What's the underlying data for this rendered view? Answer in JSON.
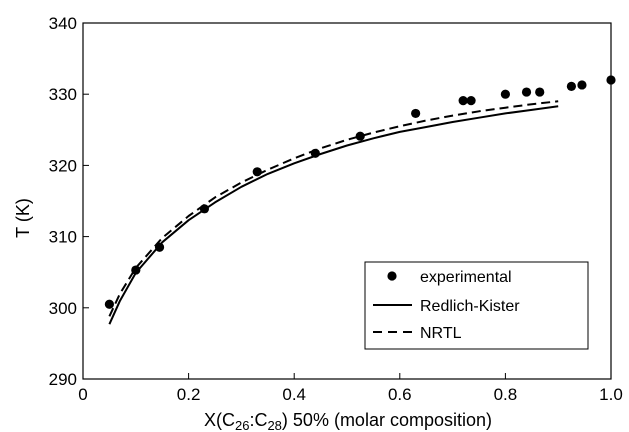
{
  "chart_data": {
    "type": "line",
    "xlabel": {
      "prefix": "X(C",
      "sub1": "26",
      "mid": ":C",
      "sub2": "28",
      "suffix": ") 50% (molar composition)"
    },
    "ylabel": "T (K)",
    "xlim": [
      0,
      1.0
    ],
    "ylim": [
      290,
      340
    ],
    "x_ticks": [
      0,
      0.2,
      0.4,
      0.6,
      0.8,
      1.0
    ],
    "x_tick_labels": [
      "0",
      "0.2",
      "0.4",
      "0.6",
      "0.8",
      "1.0"
    ],
    "y_ticks": [
      290,
      300,
      310,
      320,
      330,
      340
    ],
    "y_tick_labels": [
      "290",
      "300",
      "310",
      "320",
      "330",
      "340"
    ],
    "grid": false,
    "legend_position": "lower-right",
    "series": [
      {
        "name": "experimental",
        "style": "markers",
        "color": "#000000",
        "points": [
          [
            0.05,
            300.5
          ],
          [
            0.1,
            305.3
          ],
          [
            0.145,
            308.5
          ],
          [
            0.23,
            313.9
          ],
          [
            0.33,
            319.1
          ],
          [
            0.44,
            321.7
          ],
          [
            0.525,
            324.1
          ],
          [
            0.63,
            327.3
          ],
          [
            0.72,
            329.1
          ],
          [
            0.735,
            329.1
          ],
          [
            0.8,
            330.0
          ],
          [
            0.84,
            330.3
          ],
          [
            0.865,
            330.3
          ],
          [
            0.925,
            331.1
          ],
          [
            0.945,
            331.3
          ],
          [
            1.0,
            332.0
          ]
        ]
      },
      {
        "name": "Redlich-Kister",
        "style": "solid",
        "color": "#000000",
        "points": [
          [
            0.05,
            297.7
          ],
          [
            0.07,
            301.0
          ],
          [
            0.1,
            304.9
          ],
          [
            0.15,
            309.2
          ],
          [
            0.2,
            312.3
          ],
          [
            0.25,
            314.8
          ],
          [
            0.3,
            317.0
          ],
          [
            0.35,
            318.8
          ],
          [
            0.4,
            320.3
          ],
          [
            0.45,
            321.6
          ],
          [
            0.5,
            322.8
          ],
          [
            0.55,
            323.8
          ],
          [
            0.6,
            324.7
          ],
          [
            0.65,
            325.4
          ],
          [
            0.7,
            326.1
          ],
          [
            0.75,
            326.7
          ],
          [
            0.8,
            327.3
          ],
          [
            0.85,
            327.8
          ],
          [
            0.9,
            328.3
          ]
        ]
      },
      {
        "name": "NRTL",
        "style": "dashed",
        "color": "#000000",
        "points": [
          [
            0.05,
            298.8
          ],
          [
            0.07,
            302.0
          ],
          [
            0.1,
            305.6
          ],
          [
            0.15,
            309.8
          ],
          [
            0.2,
            312.9
          ],
          [
            0.25,
            315.5
          ],
          [
            0.3,
            317.6
          ],
          [
            0.35,
            319.4
          ],
          [
            0.4,
            321.0
          ],
          [
            0.45,
            322.4
          ],
          [
            0.5,
            323.6
          ],
          [
            0.55,
            324.6
          ],
          [
            0.6,
            325.5
          ],
          [
            0.65,
            326.3
          ],
          [
            0.7,
            327.0
          ],
          [
            0.75,
            327.6
          ],
          [
            0.8,
            328.1
          ],
          [
            0.85,
            328.6
          ],
          [
            0.9,
            329.0
          ]
        ]
      }
    ]
  }
}
